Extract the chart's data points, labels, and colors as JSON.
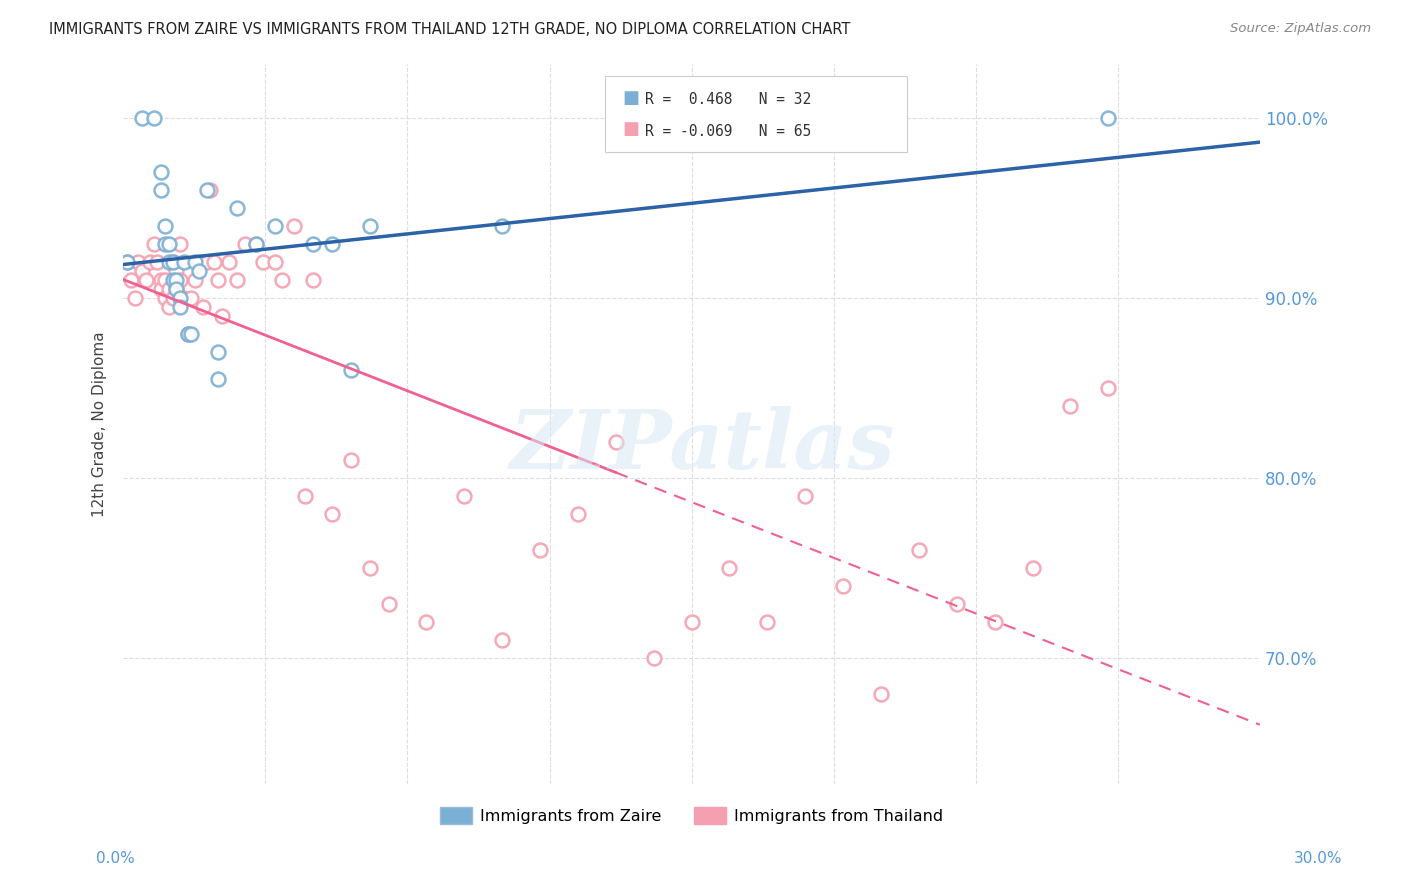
{
  "title": "IMMIGRANTS FROM ZAIRE VS IMMIGRANTS FROM THAILAND 12TH GRADE, NO DIPLOMA CORRELATION CHART",
  "source": "Source: ZipAtlas.com",
  "ylabel": "12th Grade, No Diploma",
  "legend_zaire": "Immigrants from Zaire",
  "legend_thailand": "Immigrants from Thailand",
  "r_zaire": 0.468,
  "n_zaire": 32,
  "r_thailand": -0.069,
  "n_thailand": 65,
  "zaire_color": "#7BAFD4",
  "thailand_color": "#F4A0B0",
  "zaire_line_color": "#2B62A8",
  "thailand_line_color": "#F06090",
  "background_color": "#FFFFFF",
  "xmin": 0.0,
  "xmax": 0.3,
  "ymin": 0.63,
  "ymax": 1.03,
  "zaire_x": [
    0.001,
    0.005,
    0.008,
    0.01,
    0.01,
    0.011,
    0.011,
    0.012,
    0.012,
    0.013,
    0.013,
    0.014,
    0.014,
    0.015,
    0.015,
    0.016,
    0.017,
    0.018,
    0.019,
    0.02,
    0.022,
    0.025,
    0.025,
    0.03,
    0.035,
    0.04,
    0.05,
    0.055,
    0.06,
    0.065,
    0.1,
    0.26
  ],
  "zaire_y": [
    0.92,
    1.0,
    1.0,
    0.97,
    0.96,
    0.94,
    0.93,
    0.93,
    0.92,
    0.92,
    0.91,
    0.91,
    0.905,
    0.9,
    0.895,
    0.92,
    0.88,
    0.88,
    0.92,
    0.915,
    0.96,
    0.87,
    0.855,
    0.95,
    0.93,
    0.94,
    0.93,
    0.93,
    0.86,
    0.94,
    0.94,
    1.0
  ],
  "thailand_x": [
    0.001,
    0.002,
    0.003,
    0.004,
    0.005,
    0.006,
    0.007,
    0.008,
    0.009,
    0.01,
    0.01,
    0.011,
    0.011,
    0.012,
    0.012,
    0.013,
    0.013,
    0.014,
    0.014,
    0.015,
    0.015,
    0.016,
    0.017,
    0.018,
    0.019,
    0.02,
    0.021,
    0.022,
    0.023,
    0.024,
    0.025,
    0.026,
    0.028,
    0.03,
    0.032,
    0.035,
    0.037,
    0.04,
    0.042,
    0.045,
    0.048,
    0.05,
    0.055,
    0.06,
    0.065,
    0.07,
    0.08,
    0.09,
    0.1,
    0.11,
    0.12,
    0.13,
    0.14,
    0.15,
    0.16,
    0.17,
    0.18,
    0.19,
    0.2,
    0.21,
    0.22,
    0.23,
    0.24,
    0.25,
    0.26
  ],
  "thailand_y": [
    0.92,
    0.91,
    0.9,
    0.92,
    0.915,
    0.91,
    0.92,
    0.93,
    0.92,
    0.91,
    0.905,
    0.9,
    0.91,
    0.905,
    0.895,
    0.92,
    0.9,
    0.915,
    0.905,
    0.91,
    0.93,
    0.9,
    0.88,
    0.9,
    0.91,
    0.92,
    0.895,
    0.92,
    0.96,
    0.92,
    0.91,
    0.89,
    0.92,
    0.91,
    0.93,
    0.93,
    0.92,
    0.92,
    0.91,
    0.94,
    0.79,
    0.91,
    0.78,
    0.81,
    0.75,
    0.73,
    0.72,
    0.79,
    0.71,
    0.76,
    0.78,
    0.82,
    0.7,
    0.72,
    0.75,
    0.72,
    0.79,
    0.74,
    0.68,
    0.76,
    0.73,
    0.72,
    0.75,
    0.84,
    0.85
  ]
}
